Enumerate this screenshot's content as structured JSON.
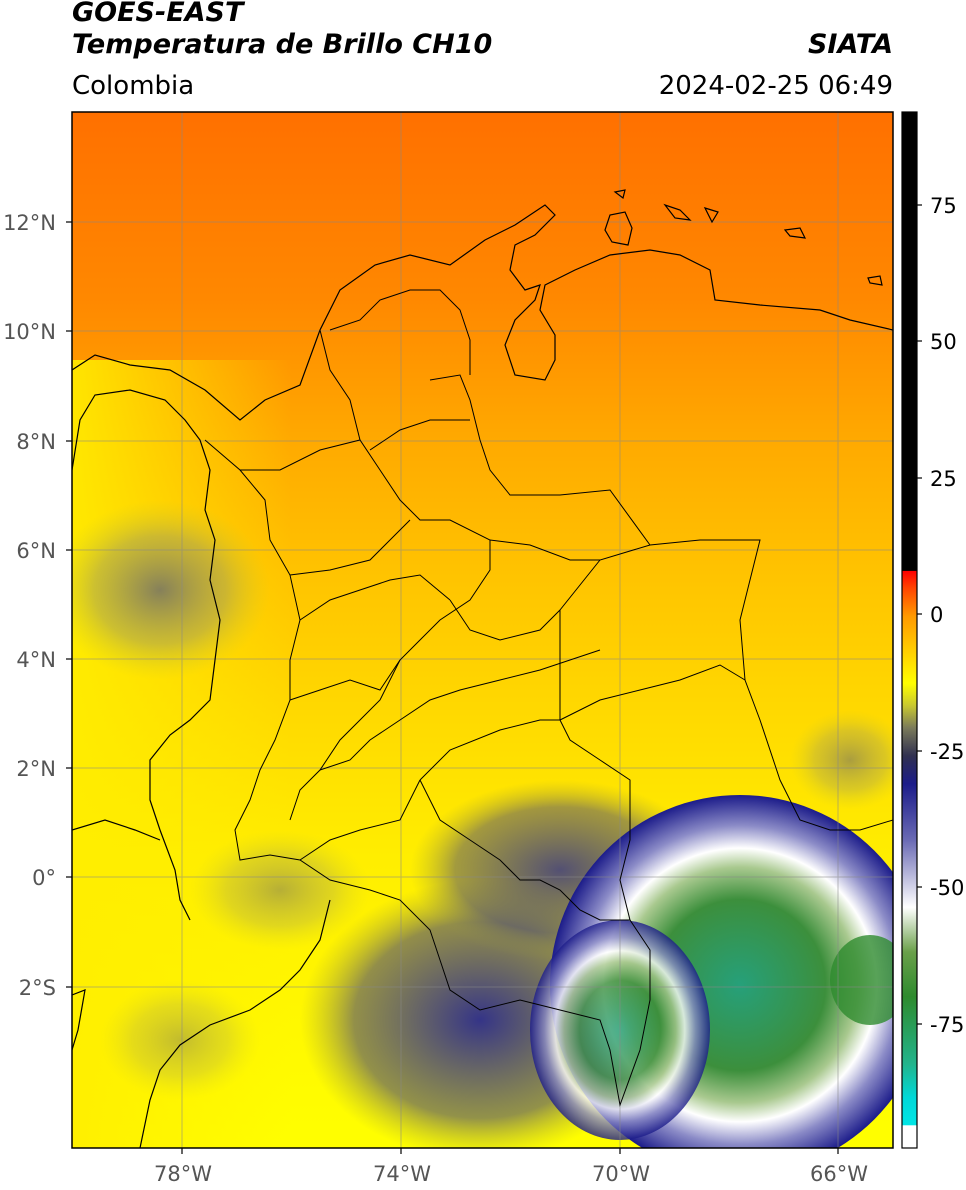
{
  "header": {
    "satellite": "GOES-EAST",
    "product": "Temperatura de Brillo CH10",
    "source": "SIATA",
    "region": "Colombia",
    "datetime": "2024-02-25 06:49"
  },
  "map": {
    "lon_range": [
      -80,
      -65
    ],
    "lat_range": [
      -4.8,
      14.2
    ],
    "lat_ticks": [
      {
        "value": 12,
        "label": "12°N"
      },
      {
        "value": 10,
        "label": "10°N"
      },
      {
        "value": 8,
        "label": "8°N"
      },
      {
        "value": 6,
        "label": "6°N"
      },
      {
        "value": 4,
        "label": "4°N"
      },
      {
        "value": 2,
        "label": "2°N"
      },
      {
        "value": 0,
        "label": "0°"
      },
      {
        "value": -2,
        "label": "2°S"
      }
    ],
    "lon_ticks": [
      {
        "value": -78,
        "label": "78°W"
      },
      {
        "value": -74,
        "label": "74°W"
      },
      {
        "value": -70,
        "label": "70°W"
      },
      {
        "value": -66,
        "label": "66°W"
      }
    ],
    "grid": true
  },
  "colorbar": {
    "range": [
      -95,
      90
    ],
    "ticks": [
      {
        "value": 75,
        "label": "75"
      },
      {
        "value": 50,
        "label": "50"
      },
      {
        "value": 25,
        "label": "25"
      },
      {
        "value": 0,
        "label": "0"
      },
      {
        "value": -25,
        "label": "-25"
      },
      {
        "value": -50,
        "label": "-50"
      },
      {
        "value": -75,
        "label": "-75"
      }
    ],
    "stops": [
      {
        "value": -95,
        "color": "#ffffff"
      },
      {
        "value": -91,
        "color": "#ffffff"
      },
      {
        "value": -90.9,
        "color": "#00e5e5"
      },
      {
        "value": -86,
        "color": "#00d8d8"
      },
      {
        "value": -80,
        "color": "#22b48c"
      },
      {
        "value": -68,
        "color": "#2e8b2e"
      },
      {
        "value": -60,
        "color": "#6aa04a"
      },
      {
        "value": -52,
        "color": "#ffffff"
      },
      {
        "value": -40,
        "color": "#6a6ab4"
      },
      {
        "value": -30,
        "color": "#1c1c8a"
      },
      {
        "value": -25,
        "color": "#303050"
      },
      {
        "value": -20,
        "color": "#7a7a5a"
      },
      {
        "value": -16,
        "color": "#c8c830"
      },
      {
        "value": -12,
        "color": "#ffff00"
      },
      {
        "value": 0,
        "color": "#ff9900"
      },
      {
        "value": 5,
        "color": "#ff4400"
      },
      {
        "value": 8,
        "color": "#ff0000"
      },
      {
        "value": 8.1,
        "color": "#000000"
      },
      {
        "value": 90,
        "color": "#000000"
      }
    ]
  }
}
